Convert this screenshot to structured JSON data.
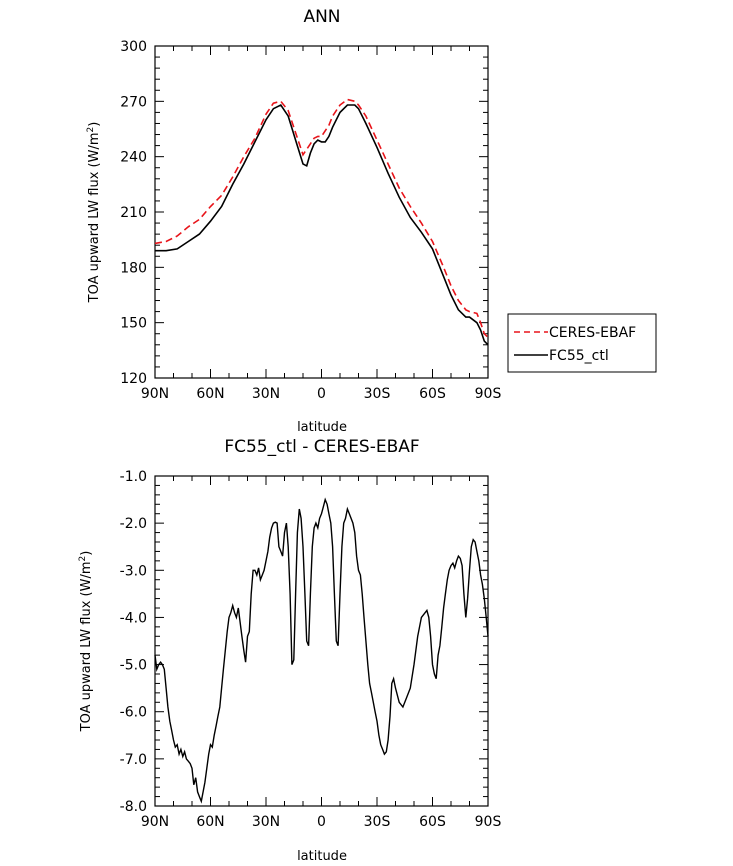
{
  "chart_data": [
    {
      "type": "line",
      "title": "ANN",
      "xlabel": "latitude",
      "ylabel_prefix": "TOA upward LW flux (W/m",
      "ylabel_sup": "2",
      "ylabel_suffix": ")",
      "xlim": [
        90,
        -90
      ],
      "ylim": [
        120,
        300
      ],
      "xticks": [
        90,
        60,
        30,
        0,
        -30,
        -60,
        -90
      ],
      "xtick_labels": [
        "90N",
        "60N",
        "30N",
        "0",
        "30S",
        "60S",
        "90S"
      ],
      "yticks": [
        120,
        150,
        180,
        210,
        240,
        270,
        300
      ],
      "ytick_labels": [
        "120",
        "150",
        "180",
        "210",
        "240",
        "270",
        "300"
      ],
      "legend_position": "right",
      "series": [
        {
          "name": "CERES-EBAF",
          "color": "#e8141a",
          "dash": "dashed",
          "x": [
            90,
            84,
            78,
            72,
            66,
            60,
            54,
            48,
            42,
            36,
            30,
            26,
            22,
            18,
            14,
            10,
            6,
            4,
            2,
            0,
            -2,
            -4,
            -6,
            -10,
            -14,
            -18,
            -20,
            -24,
            -30,
            -36,
            -42,
            -48,
            -54,
            -60,
            -66,
            -70,
            -74,
            -78,
            -80,
            -84,
            -86,
            -88,
            -90
          ],
          "values": [
            193,
            194,
            197,
            202,
            206,
            213,
            219,
            229,
            240,
            250,
            263,
            269,
            270,
            265,
            253,
            241,
            247,
            250,
            251,
            251,
            254,
            257,
            262,
            268,
            271,
            270,
            268,
            262,
            249,
            236,
            223,
            213,
            204,
            194,
            180,
            170,
            162,
            157,
            156,
            155,
            150,
            144,
            142
          ]
        },
        {
          "name": "FC55_ctl",
          "color": "#000000",
          "dash": "solid",
          "x": [
            90,
            84,
            78,
            72,
            66,
            60,
            54,
            48,
            42,
            36,
            30,
            26,
            22,
            18,
            14,
            10,
            8,
            6,
            4,
            2,
            0,
            -2,
            -4,
            -6,
            -10,
            -14,
            -18,
            -20,
            -24,
            -30,
            -36,
            -42,
            -48,
            -54,
            -60,
            -66,
            -70,
            -74,
            -78,
            -80,
            -84,
            -86,
            -88,
            -90
          ],
          "values": [
            189,
            189,
            190,
            194,
            198,
            205,
            213,
            225,
            236,
            248,
            260,
            266,
            268,
            262,
            249,
            236,
            235,
            242,
            247,
            249,
            248,
            248,
            251,
            256,
            264,
            268,
            268,
            266,
            258,
            245,
            231,
            218,
            207,
            199,
            190,
            175,
            165,
            157,
            153,
            153,
            150,
            146,
            140,
            138
          ]
        }
      ]
    },
    {
      "type": "line",
      "title": "FC55_ctl - CERES-EBAF",
      "xlabel": "latitude",
      "ylabel_prefix": "TOA upward LW flux (W/m",
      "ylabel_sup": "2",
      "ylabel_suffix": ")",
      "xlim": [
        90,
        -90
      ],
      "ylim": [
        -8.0,
        -1.0
      ],
      "xticks": [
        90,
        60,
        30,
        0,
        -30,
        -60,
        -90
      ],
      "xtick_labels": [
        "90N",
        "60N",
        "30N",
        "0",
        "30S",
        "60S",
        "90S"
      ],
      "yticks": [
        -8.0,
        -7.0,
        -6.0,
        -5.0,
        -4.0,
        -3.0,
        -2.0,
        -1.0
      ],
      "ytick_labels": [
        "-8.0",
        "-7.0",
        "-6.0",
        "-5.0",
        "-4.0",
        "-3.0",
        "-2.0",
        "-1.0"
      ],
      "series": [
        {
          "color": "#000000",
          "dash": "solid",
          "x": [
            90,
            89,
            88,
            87,
            86,
            85,
            84,
            83,
            82,
            81,
            80,
            79,
            78,
            77,
            76,
            75,
            74,
            73,
            72,
            71,
            70,
            69,
            68,
            67,
            66,
            65,
            64,
            63,
            62,
            61,
            60,
            59,
            58,
            57,
            56,
            55,
            54,
            53,
            52,
            51,
            50,
            49,
            48,
            47,
            46,
            45,
            44,
            43,
            42,
            41,
            40,
            39,
            38,
            37,
            36,
            35,
            34,
            33,
            32,
            31,
            30,
            29,
            28,
            27,
            26,
            25,
            24,
            23,
            22,
            21,
            20,
            19,
            18,
            17,
            16,
            15,
            14,
            13,
            12,
            11,
            10,
            9,
            8,
            7,
            6,
            5,
            4,
            3,
            2,
            1,
            0,
            -1,
            -2,
            -3,
            -4,
            -5,
            -6,
            -7,
            -8,
            -9,
            -10,
            -11,
            -12,
            -13,
            -14,
            -15,
            -16,
            -17,
            -18,
            -19,
            -20,
            -21,
            -22,
            -23,
            -24,
            -25,
            -26,
            -27,
            -28,
            -29,
            -30,
            -31,
            -32,
            -33,
            -34,
            -35,
            -36,
            -37,
            -38,
            -39,
            -40,
            -42,
            -44,
            -46,
            -48,
            -50,
            -52,
            -54,
            -56,
            -57,
            -58,
            -59,
            -60,
            -61,
            -62,
            -63,
            -64,
            -65,
            -66,
            -67,
            -68,
            -69,
            -70,
            -71,
            -72,
            -73,
            -74,
            -75,
            -76,
            -77,
            -78,
            -79,
            -80,
            -81,
            -82,
            -83,
            -84,
            -85,
            -86,
            -87,
            -88,
            -89,
            -90
          ],
          "values": [
            -4.8,
            -5.1,
            -5.0,
            -4.95,
            -5.0,
            -5.1,
            -5.5,
            -5.9,
            -6.2,
            -6.4,
            -6.6,
            -6.75,
            -6.7,
            -6.9,
            -6.8,
            -6.95,
            -6.85,
            -7.0,
            -7.05,
            -7.1,
            -7.2,
            -7.55,
            -7.4,
            -7.7,
            -7.8,
            -7.9,
            -7.7,
            -7.5,
            -7.2,
            -6.9,
            -6.7,
            -6.75,
            -6.5,
            -6.3,
            -6.1,
            -5.9,
            -5.5,
            -5.1,
            -4.7,
            -4.3,
            -4.0,
            -3.9,
            -3.75,
            -3.9,
            -4.0,
            -3.8,
            -4.1,
            -4.4,
            -4.7,
            -4.95,
            -4.4,
            -4.3,
            -3.5,
            -3.0,
            -3.0,
            -3.1,
            -2.95,
            -3.2,
            -3.1,
            -3.0,
            -2.8,
            -2.6,
            -2.3,
            -2.1,
            -2.0,
            -1.98,
            -2.0,
            -2.5,
            -2.6,
            -2.7,
            -2.2,
            -2.0,
            -2.5,
            -3.5,
            -5.0,
            -4.9,
            -3.5,
            -2.2,
            -1.7,
            -1.9,
            -2.5,
            -3.5,
            -4.5,
            -4.6,
            -3.5,
            -2.5,
            -2.1,
            -2.0,
            -2.1,
            -1.9,
            -1.8,
            -1.65,
            -1.5,
            -1.6,
            -1.8,
            -2.0,
            -2.5,
            -3.5,
            -4.5,
            -4.6,
            -3.5,
            -2.5,
            -2.0,
            -1.9,
            -1.7,
            -1.8,
            -1.9,
            -2.0,
            -2.2,
            -2.7,
            -3.0,
            -3.1,
            -3.5,
            -4.0,
            -4.5,
            -5.0,
            -5.4,
            -5.6,
            -5.8,
            -6.0,
            -6.2,
            -6.5,
            -6.7,
            -6.8,
            -6.9,
            -6.85,
            -6.6,
            -6.1,
            -5.4,
            -5.3,
            -5.5,
            -5.8,
            -5.9,
            -5.7,
            -5.5,
            -5.0,
            -4.4,
            -4.0,
            -3.9,
            -3.85,
            -4.0,
            -4.4,
            -5.0,
            -5.2,
            -5.3,
            -4.8,
            -4.6,
            -4.2,
            -3.8,
            -3.5,
            -3.2,
            -3.0,
            -2.9,
            -2.85,
            -2.95,
            -2.8,
            -2.7,
            -2.75,
            -2.9,
            -3.5,
            -4.0,
            -3.6,
            -3.0,
            -2.5,
            -2.35,
            -2.4,
            -2.6,
            -2.8,
            -3.1,
            -3.3,
            -3.6,
            -4.0,
            -4.4
          ]
        }
      ]
    }
  ]
}
